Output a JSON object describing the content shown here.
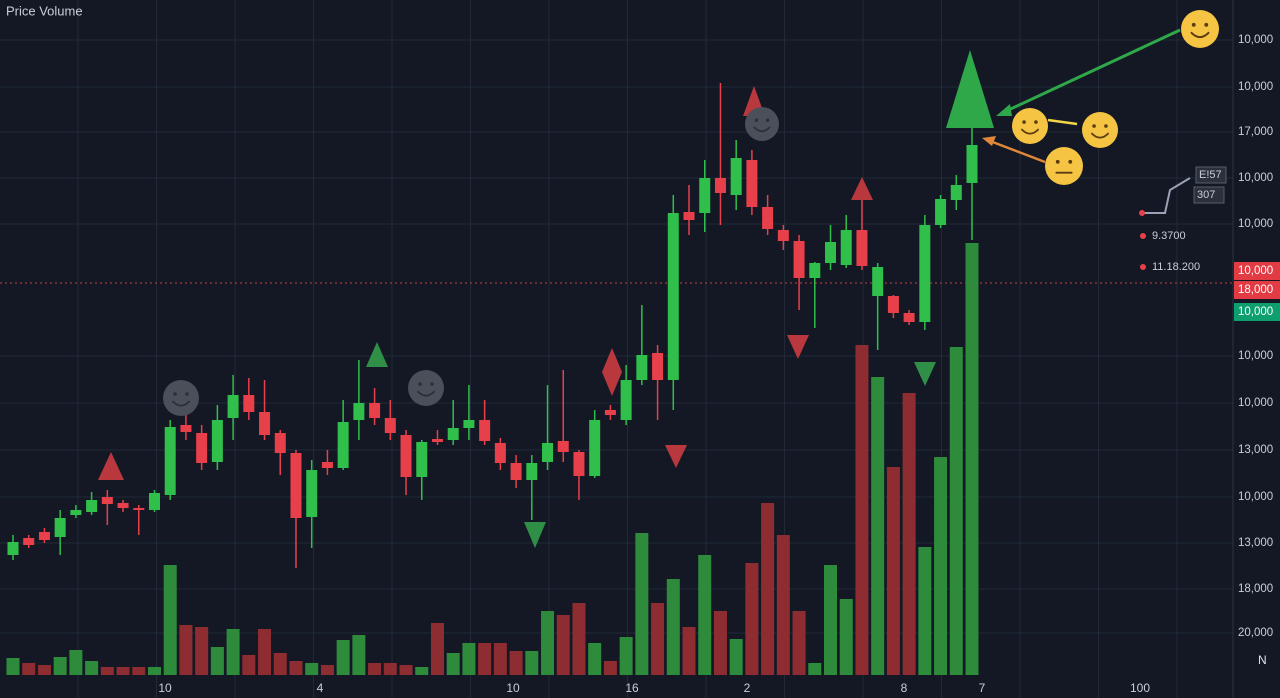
{
  "chart_data": {
    "type": "candlestick",
    "title": "Price Volume",
    "ylim": [
      0,
      675
    ],
    "up_color": "#2fbf4a",
    "down_color": "#e8404a",
    "volume_up_color": "#2e8b3c",
    "volume_down_color": "#8e2d31",
    "open": [
      120,
      137,
      143,
      138,
      160,
      163,
      178,
      172,
      167,
      165,
      180,
      250,
      242,
      213,
      257,
      280,
      263,
      242,
      222,
      158,
      213,
      207,
      255,
      272,
      257,
      240,
      198,
      236,
      235,
      247,
      255,
      232,
      212,
      195,
      213,
      234,
      223,
      199,
      265,
      255,
      295,
      322,
      295,
      463,
      462,
      497,
      480,
      515,
      468,
      445,
      434,
      397,
      412,
      410,
      445,
      379,
      379,
      362,
      353,
      450,
      475,
      492
    ],
    "high": [
      140,
      140,
      147,
      165,
      170,
      183,
      185,
      175,
      170,
      185,
      255,
      270,
      250,
      270,
      300,
      297,
      295,
      245,
      225,
      215,
      225,
      275,
      315,
      287,
      275,
      245,
      235,
      245,
      275,
      290,
      275,
      237,
      220,
      220,
      290,
      305,
      225,
      265,
      270,
      310,
      370,
      330,
      480,
      490,
      515,
      592,
      535,
      525,
      480,
      450,
      440,
      413,
      450,
      460,
      475,
      412,
      380,
      365,
      460,
      480,
      500,
      550
    ],
    "low": [
      115,
      127,
      132,
      120,
      157,
      160,
      150,
      163,
      140,
      163,
      175,
      235,
      205,
      205,
      235,
      255,
      235,
      200,
      107,
      127,
      200,
      205,
      235,
      250,
      235,
      180,
      175,
      230,
      230,
      235,
      230,
      205,
      187,
      155,
      205,
      213,
      175,
      197,
      255,
      250,
      290,
      255,
      265,
      440,
      443,
      450,
      465,
      460,
      440,
      425,
      365,
      347,
      405,
      407,
      405,
      325,
      357,
      350,
      345,
      447,
      465,
      435
    ],
    "close": [
      133,
      130,
      135,
      157,
      165,
      175,
      171,
      167,
      165,
      182,
      248,
      243,
      212,
      255,
      280,
      263,
      240,
      222,
      157,
      205,
      207,
      253,
      272,
      257,
      242,
      198,
      233,
      233,
      247,
      255,
      234,
      212,
      195,
      212,
      232,
      223,
      199,
      255,
      260,
      295,
      320,
      295,
      462,
      455,
      497,
      482,
      517,
      468,
      446,
      434,
      397,
      412,
      433,
      445,
      409,
      408,
      362,
      353,
      450,
      476,
      490,
      530
    ],
    "volume": [
      17,
      12,
      10,
      18,
      25,
      14,
      8,
      8,
      8,
      8,
      110,
      50,
      48,
      28,
      46,
      20,
      46,
      22,
      14,
      12,
      10,
      35,
      40,
      12,
      12,
      10,
      8,
      52,
      22,
      32,
      32,
      32,
      24,
      24,
      64,
      60,
      72,
      32,
      14,
      38,
      142,
      72,
      96,
      48,
      120,
      64,
      36,
      112,
      172,
      140,
      64,
      12,
      110,
      76,
      330,
      298,
      208,
      282,
      128,
      218,
      328,
      432
    ],
    "price_labels": [
      "10,000",
      "10,000",
      "17,000",
      "10,000",
      "10,000",
      "10,000",
      "10,000",
      "13,000",
      "10,000",
      "13,000",
      "18,000",
      "20,000"
    ],
    "price_tags": [
      {
        "label": "10,000",
        "color": "#e23b44"
      },
      {
        "label": "18,000",
        "color": "#e23b44"
      },
      {
        "label": "10,000",
        "color": "#0e9f6e"
      }
    ],
    "x_labels": [
      "10",
      "4",
      "10",
      "16",
      "2",
      "8",
      "7",
      "100"
    ],
    "overlay_labels": [
      "E!57",
      "307",
      "9.3700",
      "11.18.200"
    ],
    "corner_labels": [
      "N"
    ]
  }
}
